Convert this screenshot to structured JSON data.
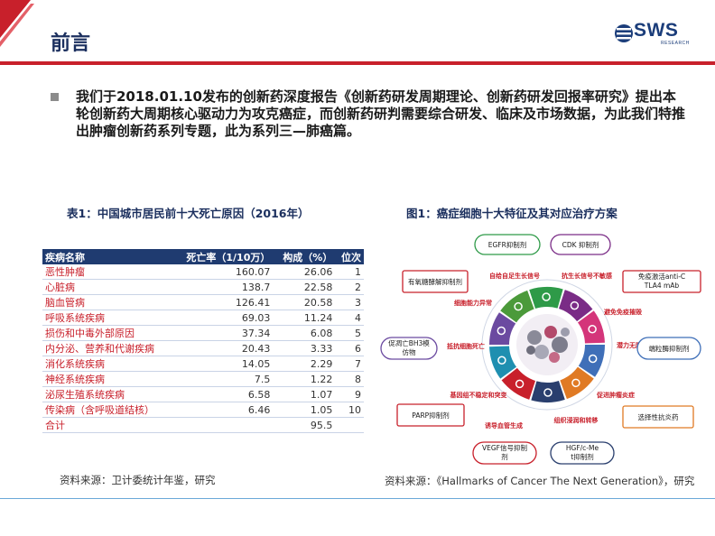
{
  "header": {
    "title": "前言",
    "logo_text": "SWS",
    "logo_sub": "RESEARCH"
  },
  "bullet": "我们于2018.01.10发布的创新药深度报告《创新药研发周期理论、创新药研发回报率研究》提出本轮创新药大周期核心驱动力为攻克癌症，而创新药研判需要综合研发、临床及市场数据，为此我们特推出肿瘤创新药系列专题，此为系列三—肺癌篇。",
  "table_caption": "表1：中国城市居民前十大死亡原因（2016年）",
  "figure_caption": "图1：癌症细胞十大特征及其对应治疗方案",
  "chart_data": {
    "type": "table",
    "columns": [
      "疾病名称",
      "死亡率（1/10万）",
      "构成（%）",
      "位次"
    ],
    "rows": [
      [
        "恶性肿瘤",
        "160.07",
        "26.06",
        "1"
      ],
      [
        "心脏病",
        "138.7",
        "22.58",
        "2"
      ],
      [
        "脑血管病",
        "126.41",
        "20.58",
        "3"
      ],
      [
        "呼吸系统疾病",
        "69.03",
        "11.24",
        "4"
      ],
      [
        "损伤和中毒外部原因",
        "37.34",
        "6.08",
        "5"
      ],
      [
        "内分泌、营养和代谢疾病",
        "20.43",
        "3.33",
        "6"
      ],
      [
        "消化系统疾病",
        "14.05",
        "2.29",
        "7"
      ],
      [
        "神经系统疾病",
        "7.5",
        "1.22",
        "8"
      ],
      [
        "泌尿生殖系统疾病",
        "6.58",
        "1.07",
        "9"
      ],
      [
        "传染病（含呼吸道结核）",
        "6.46",
        "1.05",
        "10"
      ]
    ],
    "total": [
      "合计",
      "",
      "95.5",
      ""
    ]
  },
  "diagram": {
    "hallmarks": [
      "自给自足生长信号",
      "抗生长信号不敏感",
      "避免免疫摧毁",
      "潜力无限复制",
      "促进肿瘤炎症",
      "组织浸润和转移",
      "诱导血管生成",
      "基因组不稳定和突变",
      "抵抗细胞死亡",
      "细胞能力异常"
    ],
    "therapies": [
      "EGFR抑制剂",
      "CDK 抑制剂",
      "免疫激活anti-CTLA4 mAb",
      "端粒酶抑制剂",
      "选择性抗炎药",
      "HGF/c-Met抑制剂",
      "VEGF信号抑制剂",
      "PARP抑制剂",
      "促凋亡BH3模仿物",
      "有氧糖酵解抑制剂"
    ],
    "colors": {
      "ring": [
        "#2e9a48",
        "#7a2c86",
        "#d4357a",
        "#3f6fb8",
        "#e07a24",
        "#2a3f6e",
        "#c8202b",
        "#1f8fb0",
        "#6b4aa0",
        "#4b9a3a"
      ],
      "accent_red": "#c8202b",
      "navy": "#1f3b70"
    }
  },
  "sources": {
    "left": "资料来源：卫计委统计年鉴，研究",
    "right": "资料来源：《Hallmarks of Cancer The Next Generation》，研究"
  }
}
